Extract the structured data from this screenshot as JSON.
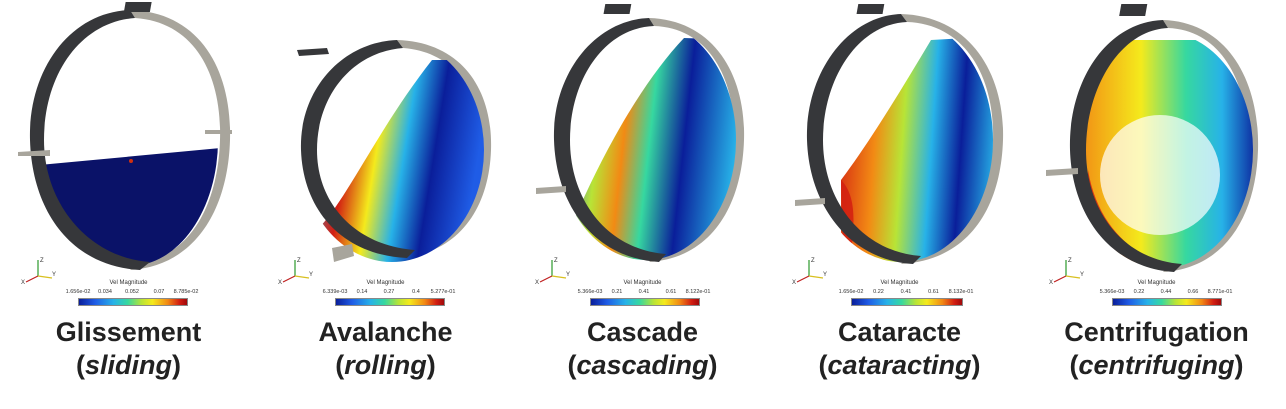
{
  "colormap": {
    "low": "#0a1e9a",
    "mid": "#36d8a0",
    "high": "#a0080a"
  },
  "panels": [
    {
      "name": "Glissement",
      "en": "sliding",
      "bar_title": "Vel Magnitude",
      "ticks": [
        "1.656e-02",
        "0.034",
        "0.052",
        "0.07",
        "8.785e-02"
      ],
      "regime": "sliding"
    },
    {
      "name": "Avalanche",
      "en": "rolling",
      "bar_title": "Vel Magnitude",
      "ticks": [
        "6.339e-03",
        "0.14",
        "0.27",
        "0.4",
        "5.277e-01"
      ],
      "regime": "rolling"
    },
    {
      "name": "Cascade",
      "en": "cascading",
      "bar_title": "Vel Magnitude",
      "ticks": [
        "5.366e-03",
        "0.21",
        "0.41",
        "0.61",
        "8.122e-01"
      ],
      "regime": "cascading"
    },
    {
      "name": "Cataracte",
      "en": "cataracting",
      "bar_title": "Vel Magnitude",
      "ticks": [
        "1.656e-02",
        "0.22",
        "0.41",
        "0.61",
        "8.132e-01"
      ],
      "regime": "cataracting"
    },
    {
      "name": "Centrifugation",
      "en": "centrifuging",
      "bar_title": "Vel Magnitude",
      "ticks": [
        "5.366e-03",
        "0.22",
        "0.44",
        "0.66",
        "8.771e-01"
      ],
      "regime": "centrifuging"
    }
  ],
  "axis_labels": {
    "x": "X",
    "y": "Y",
    "z": "Z"
  }
}
